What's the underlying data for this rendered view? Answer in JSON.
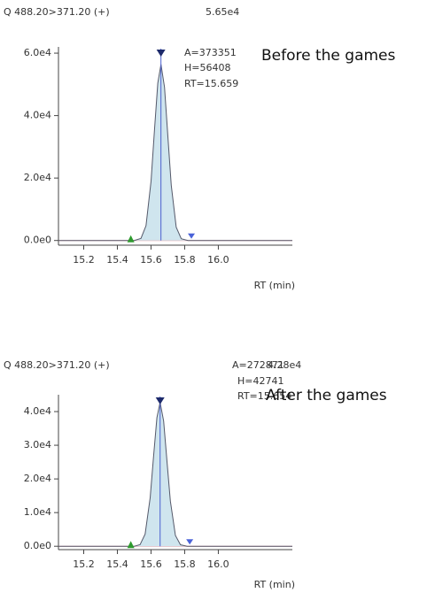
{
  "chart_data": [
    {
      "type": "area",
      "header": "Q 488.20>371.20 (+)",
      "max_label": "5.65e4",
      "annotations": [
        "A=373351",
        "H=56408",
        "RT=15.659"
      ],
      "caption": "Before the games",
      "x_label": "RT (min)",
      "x": [
        15.05,
        15.4,
        15.5,
        15.54,
        15.57,
        15.6,
        15.62,
        15.64,
        15.659,
        15.68,
        15.7,
        15.72,
        15.75,
        15.78,
        15.82,
        15.9,
        16.44
      ],
      "values": [
        0,
        0,
        0,
        670,
        4750,
        19000,
        35100,
        50400,
        56408,
        49100,
        33300,
        17700,
        4250,
        580,
        0,
        0,
        0
      ],
      "color": "#cfe5ee",
      "line_color": "#55596a",
      "rt": 15.659,
      "peak_start": 15.48,
      "peak_end": 15.84,
      "xlim": [
        15.05,
        16.44
      ],
      "xticks": [
        15.2,
        15.4,
        15.6,
        15.8,
        {
          "value": 16,
          "label": "16.0"
        }
      ],
      "ylim": [
        -1500,
        62000
      ],
      "yticks": [
        {
          "value": 0,
          "label": "0.0e0"
        },
        {
          "value": 20000,
          "label": "2.0e4"
        },
        {
          "value": 40000,
          "label": "4.0e4"
        },
        {
          "value": 60000,
          "label": "6.0e4"
        }
      ]
    },
    {
      "type": "area",
      "header": "Q 488.20>371.20 (+)",
      "max_label": "4.28e4",
      "annotations": [
        "A=272871",
        "H=42741",
        "RT=15.654"
      ],
      "caption": "After the games",
      "x_label": "RT (min)",
      "x": [
        15.05,
        15.4,
        15.5,
        15.535,
        15.565,
        15.595,
        15.615,
        15.635,
        15.654,
        15.675,
        15.695,
        15.715,
        15.745,
        15.775,
        15.815,
        15.9,
        16.44
      ],
      "values": [
        0,
        0,
        0,
        500,
        3600,
        14400,
        26600,
        38200,
        42741,
        37200,
        25200,
        13400,
        3200,
        440,
        0,
        0,
        0
      ],
      "color": "#cfe5ee",
      "line_color": "#55596a",
      "rt": 15.654,
      "peak_start": 15.48,
      "peak_end": 15.83,
      "xlim": [
        15.05,
        16.44
      ],
      "xticks": [
        15.2,
        15.4,
        15.6,
        15.8,
        {
          "value": 16,
          "label": "16.0"
        }
      ],
      "ylim": [
        -1000,
        45000
      ],
      "yticks": [
        {
          "value": 0,
          "label": "0.0e0"
        },
        {
          "value": 10000,
          "label": "1.0e4"
        },
        {
          "value": 20000,
          "label": "2.0e4"
        },
        {
          "value": 30000,
          "label": "3.0e4"
        },
        {
          "value": 40000,
          "label": "4.0e4"
        }
      ]
    }
  ]
}
